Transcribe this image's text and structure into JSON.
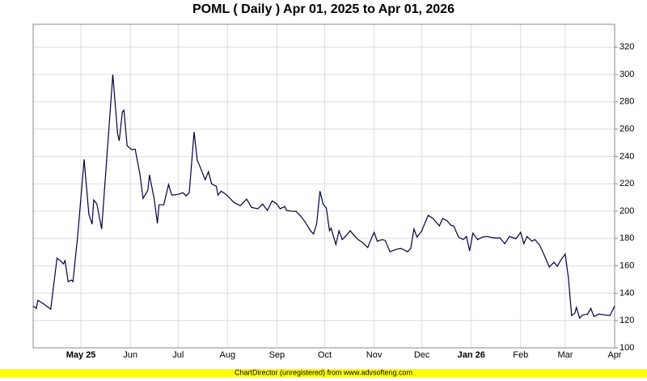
{
  "chart_data": {
    "type": "line",
    "title": "POML ( Daily ) Apr 01, 2025 to Apr 01, 2026",
    "footer": "ChartDirector (unregistered) from www.advsofteng.com",
    "x": [
      0,
      2,
      3,
      7,
      11,
      15,
      17,
      19,
      20,
      22,
      24,
      25,
      28,
      32,
      35,
      37,
      38,
      40,
      43,
      50,
      53,
      54,
      56,
      57,
      59,
      62,
      64,
      67,
      69,
      72,
      73,
      76,
      78,
      79,
      82,
      85,
      87,
      91,
      94,
      96,
      98,
      101,
      103,
      105,
      108,
      110,
      112,
      115,
      116,
      118,
      121,
      126,
      130,
      134,
      137,
      141,
      144,
      147,
      150,
      153,
      155,
      158,
      159,
      163,
      165,
      168,
      171,
      174,
      176,
      178,
      180,
      182,
      184,
      186,
      187,
      190,
      192,
      194,
      196,
      199,
      202,
      204,
      207,
      210,
      212,
      214,
      216,
      219,
      221,
      224,
      228,
      231,
      235,
      237,
      239,
      241,
      244,
      246,
      248,
      251,
      255,
      257,
      260,
      262,
      264,
      267,
      270,
      272,
      274,
      276,
      279,
      282,
      285,
      289,
      293,
      296,
      299,
      303,
      306,
      308,
      310,
      313,
      315,
      318,
      321,
      324,
      327,
      329,
      331,
      334,
      336,
      338,
      340,
      341,
      343,
      345,
      348,
      350,
      352,
      355,
      359,
      362,
      365
    ],
    "series": [
      {
        "color": "#000040",
        "values": [
          130.6,
          128.9,
          134.8,
          131.8,
          128.3,
          165.6,
          163.8,
          161.4,
          163.8,
          148.4,
          149.6,
          148.4,
          182.7,
          237.8,
          197.6,
          190.4,
          208.2,
          205.2,
          186.9,
          299.9,
          256.7,
          251.4,
          272.7,
          273.8,
          247.8,
          244.9,
          245.4,
          227.1,
          209.3,
          215.2,
          226.5,
          208.8,
          191.0,
          204.6,
          204.6,
          219.4,
          211.7,
          212.3,
          213.5,
          211.2,
          213.5,
          257.9,
          237.2,
          231.8,
          223.0,
          228.9,
          220.0,
          218.2,
          211.7,
          214.6,
          212.3,
          206.4,
          204.0,
          208.8,
          202.8,
          201.7,
          205.2,
          200.5,
          207.6,
          205.2,
          201.7,
          203.4,
          200.5,
          199.9,
          199.9,
          196.3,
          191.6,
          185.7,
          183.3,
          190.9,
          214.6,
          205.2,
          202.2,
          185.7,
          187.5,
          175.6,
          185.7,
          179.2,
          181.5,
          185.7,
          181.5,
          179.2,
          176.8,
          173.3,
          179.2,
          184.5,
          178.0,
          179.2,
          178.6,
          170.3,
          172.1,
          172.7,
          170.3,
          172.7,
          186.9,
          181.0,
          185.7,
          191.6,
          196.9,
          194.6,
          189.2,
          194.6,
          192.8,
          189.8,
          189.2,
          181.0,
          179.2,
          181.5,
          170.9,
          183.9,
          179.2,
          181.0,
          181.5,
          180.4,
          180.4,
          176.2,
          181.5,
          179.8,
          184.5,
          176.2,
          181.5,
          178.0,
          179.2,
          175.0,
          167.3,
          159.1,
          162.6,
          159.6,
          163.8,
          168.5,
          150.8,
          123.6,
          125.3,
          129.5,
          121.8,
          124.1,
          124.7,
          128.9,
          122.9,
          124.7,
          124.1,
          123.6,
          130.6
        ]
      }
    ],
    "xlim": [
      0,
      365
    ],
    "xticks": [
      {
        "value": 30,
        "label": "May 25"
      },
      {
        "value": 61,
        "label": "Jun"
      },
      {
        "value": 91,
        "label": "Jul"
      },
      {
        "value": 122,
        "label": "Aug"
      },
      {
        "value": 153,
        "label": "Sep"
      },
      {
        "value": 183,
        "label": "Oct"
      },
      {
        "value": 214,
        "label": "Nov"
      },
      {
        "value": 244,
        "label": "Dec"
      },
      {
        "value": 275,
        "label": "Jan 26"
      },
      {
        "value": 306,
        "label": "Feb"
      },
      {
        "value": 334,
        "label": "Mar"
      },
      {
        "value": 365,
        "label": "Apr"
      }
    ],
    "ylim": [
      100,
      336.7
    ],
    "yticks": [
      100,
      120,
      140,
      160,
      180,
      200,
      220,
      240,
      260,
      280,
      300,
      320
    ],
    "grid": true
  }
}
